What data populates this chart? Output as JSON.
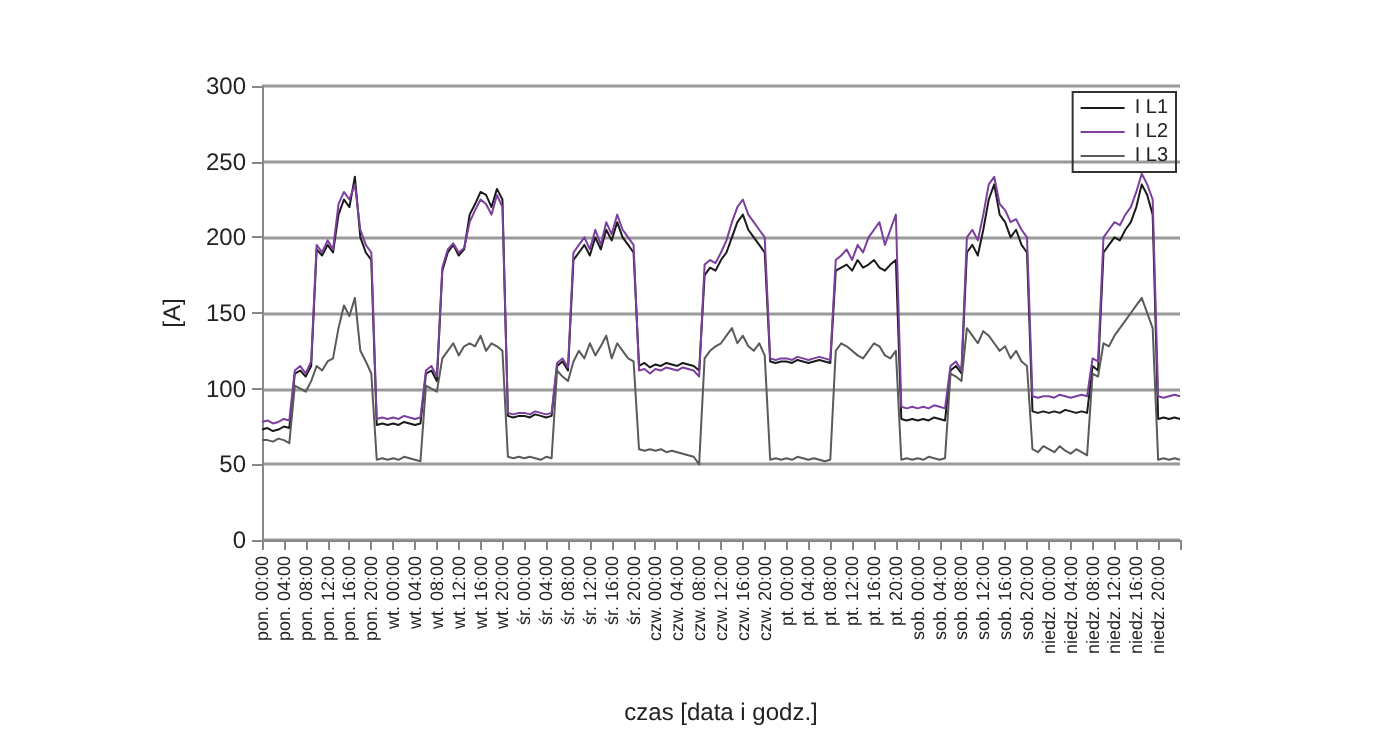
{
  "chart_data": {
    "type": "line",
    "xlabel": "czas [data i godz.]",
    "ylabel": "[A]",
    "categories": [
      "pon. 00:00",
      null,
      null,
      null,
      "pon. 04:00",
      null,
      null,
      null,
      "pon. 08:00",
      null,
      null,
      null,
      "pon. 12:00",
      null,
      null,
      null,
      "pon. 16:00",
      null,
      null,
      null,
      "pon. 20:00",
      null,
      null,
      null,
      "wt. 00:00",
      null,
      null,
      null,
      "wt. 04:00",
      null,
      null,
      null,
      "wt. 08:00",
      null,
      null,
      null,
      "wt. 12:00",
      null,
      null,
      null,
      "wt. 16:00",
      null,
      null,
      null,
      "wt. 20:00",
      null,
      null,
      null,
      "śr. 00:00",
      null,
      null,
      null,
      "śr. 04:00",
      null,
      null,
      null,
      "śr. 08:00",
      null,
      null,
      null,
      "śr. 12:00",
      null,
      null,
      null,
      "śr. 16:00",
      null,
      null,
      null,
      "śr. 20:00",
      null,
      null,
      null,
      "czw. 00:00",
      null,
      null,
      null,
      "czw. 04:00",
      null,
      null,
      null,
      "czw. 08:00",
      null,
      null,
      null,
      "czw. 12:00",
      null,
      null,
      null,
      "czw. 16:00",
      null,
      null,
      null,
      "czw. 20:00",
      null,
      null,
      null,
      "pt. 00:00",
      null,
      null,
      null,
      "pt. 04:00",
      null,
      null,
      null,
      "pt. 08:00",
      null,
      null,
      null,
      "pt. 12:00",
      null,
      null,
      null,
      "pt. 16:00",
      null,
      null,
      null,
      "pt. 20:00",
      null,
      null,
      null,
      "sob. 00:00",
      null,
      null,
      null,
      "sob. 04:00",
      null,
      null,
      null,
      "sob. 08:00",
      null,
      null,
      null,
      "sob. 12:00",
      null,
      null,
      null,
      "sob. 16:00",
      null,
      null,
      null,
      "sob. 20:00",
      null,
      null,
      null,
      "niedz. 00:00",
      null,
      null,
      null,
      "niedz. 04:00",
      null,
      null,
      null,
      "niedz. 08:00",
      null,
      null,
      null,
      "niedz. 12:00",
      null,
      null,
      null,
      "niedz. 16:00",
      null,
      null,
      null,
      "niedz. 20:00",
      null,
      null,
      null,
      null
    ],
    "series": [
      {
        "name": "I L1",
        "color": "#1a1a1a",
        "values": [
          73,
          74,
          72,
          73,
          75,
          74,
          110,
          112,
          108,
          115,
          192,
          188,
          195,
          190,
          215,
          225,
          220,
          240,
          200,
          190,
          185,
          76,
          77,
          76,
          77,
          76,
          78,
          77,
          76,
          77,
          110,
          112,
          105,
          178,
          190,
          195,
          188,
          192,
          215,
          222,
          230,
          228,
          220,
          232,
          225,
          82,
          81,
          82,
          82,
          81,
          83,
          82,
          81,
          82,
          115,
          118,
          112,
          185,
          190,
          195,
          188,
          200,
          192,
          205,
          198,
          210,
          200,
          195,
          190,
          115,
          117,
          114,
          116,
          115,
          117,
          116,
          115,
          117,
          116,
          115,
          112,
          175,
          180,
          178,
          185,
          190,
          200,
          210,
          215,
          205,
          200,
          195,
          190,
          118,
          117,
          118,
          118,
          117,
          119,
          118,
          117,
          118,
          119,
          118,
          117,
          178,
          180,
          182,
          178,
          185,
          180,
          182,
          185,
          180,
          178,
          182,
          185,
          80,
          79,
          80,
          79,
          80,
          79,
          81,
          80,
          79,
          112,
          115,
          110,
          190,
          195,
          188,
          205,
          225,
          235,
          215,
          210,
          200,
          205,
          195,
          190,
          85,
          84,
          85,
          84,
          85,
          84,
          86,
          85,
          84,
          85,
          84,
          115,
          112,
          190,
          195,
          200,
          198,
          205,
          210,
          220,
          235,
          228,
          215,
          80,
          81,
          80,
          81,
          80
        ]
      },
      {
        "name": "I L2",
        "color": "#7b3f9e",
        "values": [
          78,
          79,
          77,
          78,
          80,
          79,
          112,
          115,
          110,
          118,
          195,
          190,
          198,
          192,
          222,
          230,
          225,
          235,
          205,
          195,
          190,
          80,
          81,
          80,
          81,
          80,
          82,
          81,
          80,
          81,
          112,
          115,
          108,
          180,
          192,
          196,
          190,
          193,
          210,
          218,
          225,
          222,
          215,
          228,
          220,
          84,
          83,
          84,
          84,
          83,
          85,
          84,
          83,
          84,
          117,
          120,
          114,
          190,
          195,
          200,
          192,
          205,
          195,
          210,
          202,
          215,
          205,
          200,
          195,
          112,
          113,
          110,
          113,
          112,
          114,
          113,
          112,
          114,
          113,
          112,
          108,
          182,
          185,
          183,
          190,
          198,
          210,
          220,
          225,
          215,
          210,
          205,
          200,
          120,
          119,
          120,
          120,
          119,
          121,
          120,
          119,
          120,
          121,
          120,
          119,
          185,
          188,
          192,
          185,
          195,
          190,
          200,
          205,
          210,
          195,
          205,
          215,
          88,
          87,
          88,
          87,
          88,
          87,
          89,
          88,
          87,
          115,
          118,
          112,
          200,
          205,
          198,
          215,
          235,
          240,
          222,
          218,
          210,
          212,
          205,
          200,
          95,
          94,
          95,
          95,
          94,
          96,
          95,
          94,
          95,
          96,
          95,
          120,
          118,
          200,
          205,
          210,
          208,
          215,
          220,
          230,
          242,
          235,
          225,
          95,
          94,
          95,
          96,
          95
        ]
      },
      {
        "name": "I L3",
        "color": "#5a5a5a",
        "values": [
          66,
          66,
          65,
          67,
          66,
          64,
          102,
          100,
          98,
          105,
          115,
          112,
          118,
          120,
          140,
          155,
          148,
          160,
          125,
          118,
          110,
          53,
          54,
          53,
          54,
          53,
          55,
          54,
          53,
          52,
          102,
          100,
          98,
          120,
          125,
          130,
          122,
          128,
          130,
          128,
          135,
          125,
          130,
          128,
          125,
          55,
          54,
          55,
          54,
          55,
          54,
          53,
          55,
          54,
          112,
          108,
          105,
          118,
          125,
          120,
          130,
          122,
          128,
          135,
          120,
          130,
          125,
          120,
          118,
          60,
          59,
          60,
          59,
          60,
          58,
          59,
          58,
          57,
          56,
          55,
          50,
          120,
          125,
          128,
          130,
          135,
          140,
          130,
          135,
          128,
          125,
          130,
          122,
          53,
          54,
          53,
          54,
          53,
          55,
          54,
          53,
          54,
          53,
          52,
          53,
          125,
          130,
          128,
          125,
          122,
          120,
          125,
          130,
          128,
          122,
          120,
          125,
          53,
          54,
          53,
          54,
          53,
          55,
          54,
          53,
          54,
          110,
          108,
          105,
          140,
          135,
          130,
          138,
          135,
          130,
          125,
          128,
          120,
          125,
          118,
          115,
          60,
          58,
          62,
          60,
          58,
          62,
          59,
          57,
          60,
          58,
          56,
          110,
          108,
          130,
          128,
          135,
          140,
          145,
          150,
          155,
          160,
          150,
          140,
          53,
          54,
          53,
          54,
          53
        ]
      }
    ],
    "ylim": [
      0,
      300
    ],
    "yticks": [
      0,
      50,
      100,
      150,
      200,
      250,
      300
    ],
    "grid": "y",
    "legend": "top right",
    "marker": "none",
    "line_style": "solid"
  }
}
